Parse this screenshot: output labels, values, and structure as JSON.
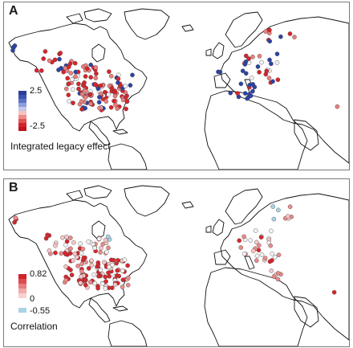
{
  "panelA": {
    "letter": "A",
    "legend": {
      "title": "Integrated legacy effect",
      "max_label": "2.5",
      "min_label": "-2.5",
      "ramp": [
        "#2a3f9a",
        "#3b55b0",
        "#5d73c4",
        "#8d9ed8",
        "#c2c9ea",
        "#f3c2c2",
        "#ee8c8c",
        "#e25454",
        "#d3242b",
        "#c0151c"
      ]
    },
    "colors": {
      "blue": "#2b43a6",
      "red": "#d8242b",
      "pink": "#ea7f7f",
      "white": "#f3f3f3"
    }
  },
  "panelB": {
    "letter": "B",
    "legend": {
      "title": "Correlation",
      "max_label": "0.82",
      "zero_label": "0",
      "min_label": "-0.55",
      "ramp": [
        "#d3222a",
        "#df4a4c",
        "#e97c7c",
        "#f2aaaa",
        "#f9d0d0"
      ],
      "negative_color": "#a9d3e6"
    },
    "colors": {
      "red": "#d9262d",
      "pink": "#eb8a8a",
      "light": "#f6c6c6",
      "blue": "#a9d3e6",
      "white": "#f3f3f3"
    }
  }
}
